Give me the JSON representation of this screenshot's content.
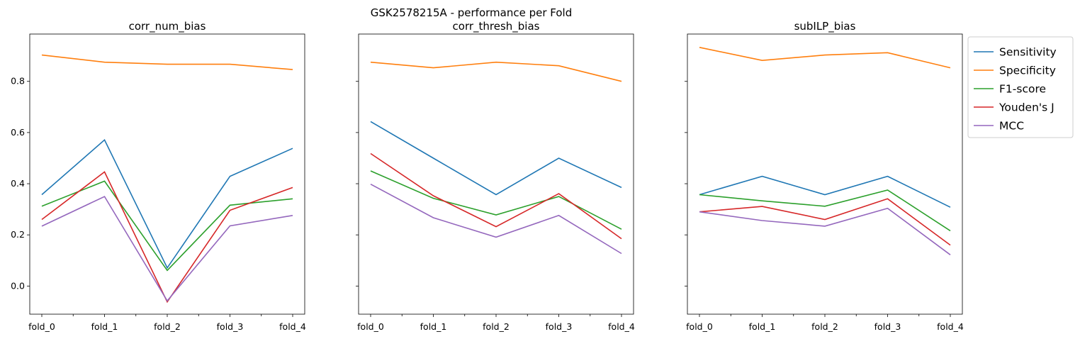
{
  "suptitle": "GSK2578215A - performance per Fold",
  "chart_data": [
    {
      "type": "line",
      "title": "corr_num_bias",
      "categories": [
        "fold_0",
        "fold_1",
        "fold_2",
        "fold_3",
        "fold_4"
      ],
      "ylim": [
        -0.11,
        0.985
      ],
      "yticks": [
        "0.0",
        "0.2",
        "0.4",
        "0.6",
        "0.8"
      ],
      "series": [
        {
          "name": "Sensitivity",
          "color": "#1f77b4",
          "values": [
            0.357,
            0.571,
            0.071,
            0.429,
            0.538
          ]
        },
        {
          "name": "Specificity",
          "color": "#ff7f0e",
          "values": [
            0.903,
            0.875,
            0.867,
            0.867,
            0.846
          ]
        },
        {
          "name": "F1-score",
          "color": "#2ca02c",
          "values": [
            0.312,
            0.41,
            0.061,
            0.316,
            0.341
          ]
        },
        {
          "name": "Youden's J",
          "color": "#d62728",
          "values": [
            0.26,
            0.446,
            -0.062,
            0.296,
            0.385
          ]
        },
        {
          "name": "MCC",
          "color": "#9467bd",
          "values": [
            0.234,
            0.35,
            -0.058,
            0.235,
            0.276
          ]
        }
      ]
    },
    {
      "type": "line",
      "title": "corr_thresh_bias",
      "categories": [
        "fold_0",
        "fold_1",
        "fold_2",
        "fold_3",
        "fold_4"
      ],
      "ylim": [
        -0.11,
        0.985
      ],
      "yticks": [
        "0.0",
        "0.2",
        "0.4",
        "0.6",
        "0.8"
      ],
      "series": [
        {
          "name": "Sensitivity",
          "color": "#1f77b4",
          "values": [
            0.643,
            0.5,
            0.357,
            0.5,
            0.385
          ]
        },
        {
          "name": "Specificity",
          "color": "#ff7f0e",
          "values": [
            0.875,
            0.853,
            0.875,
            0.861,
            0.8
          ]
        },
        {
          "name": "F1-score",
          "color": "#2ca02c",
          "values": [
            0.45,
            0.343,
            0.278,
            0.35,
            0.222
          ]
        },
        {
          "name": "Youden's J",
          "color": "#d62728",
          "values": [
            0.518,
            0.353,
            0.232,
            0.361,
            0.185
          ]
        },
        {
          "name": "MCC",
          "color": "#9467bd",
          "values": [
            0.398,
            0.267,
            0.191,
            0.276,
            0.127
          ]
        }
      ]
    },
    {
      "type": "line",
      "title": "subILP_bias",
      "categories": [
        "fold_0",
        "fold_1",
        "fold_2",
        "fold_3",
        "fold_4"
      ],
      "ylim": [
        -0.11,
        0.985
      ],
      "yticks": [
        "0.0",
        "0.2",
        "0.4",
        "0.6",
        "0.8"
      ],
      "series": [
        {
          "name": "Sensitivity",
          "color": "#1f77b4",
          "values": [
            0.357,
            0.429,
            0.357,
            0.429,
            0.308
          ]
        },
        {
          "name": "Specificity",
          "color": "#ff7f0e",
          "values": [
            0.933,
            0.882,
            0.903,
            0.912,
            0.853
          ]
        },
        {
          "name": "F1-score",
          "color": "#2ca02c",
          "values": [
            0.357,
            0.333,
            0.312,
            0.375,
            0.216
          ]
        },
        {
          "name": "Youden's J",
          "color": "#d62728",
          "values": [
            0.29,
            0.311,
            0.26,
            0.341,
            0.16
          ]
        },
        {
          "name": "MCC",
          "color": "#9467bd",
          "values": [
            0.29,
            0.256,
            0.234,
            0.304,
            0.122
          ]
        }
      ]
    }
  ],
  "legend": {
    "placement": "outside-right",
    "entries": [
      "Sensitivity",
      "Specificity",
      "F1-score",
      "Youden's J",
      "MCC"
    ]
  }
}
